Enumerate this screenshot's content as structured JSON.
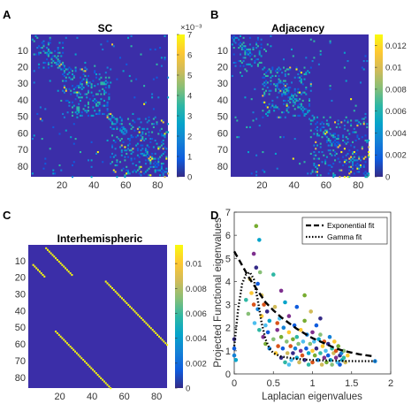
{
  "panel_labels": [
    "A",
    "B",
    "C",
    "D"
  ],
  "colors": {
    "background": "#ffffff",
    "matrix_bg": "#3b2ea8",
    "parula": [
      "#352a87",
      "#0f5cdd",
      "#1481d6",
      "#06a4ca",
      "#2eb7a4",
      "#87bf77",
      "#d1bb59",
      "#fec832",
      "#f9fb0e"
    ],
    "fit_line": "#000000"
  },
  "chart_data": [
    {
      "type": "heatmap",
      "panel": "A",
      "title": "SC",
      "x_ticks": [
        "20",
        "40",
        "60",
        "80"
      ],
      "y_ticks": [
        "10",
        "20",
        "30",
        "40",
        "50",
        "60",
        "70",
        "80"
      ],
      "colorbar": {
        "min": 0,
        "max": 0.007,
        "ticks": [
          "0",
          "1",
          "2",
          "3",
          "4",
          "5",
          "6",
          "7"
        ],
        "multiplier": "×10⁻³"
      }
    },
    {
      "type": "heatmap",
      "panel": "B",
      "title": "Adjacency",
      "x_ticks": [
        "20",
        "40",
        "60",
        "80"
      ],
      "y_ticks": [
        "10",
        "20",
        "30",
        "40",
        "50",
        "60",
        "70",
        "80"
      ],
      "colorbar": {
        "min": 0,
        "max": 0.013,
        "ticks": [
          "0",
          "0.002",
          "0.004",
          "0.006",
          "0.008",
          "0.01",
          "0.012"
        ]
      }
    },
    {
      "type": "heatmap",
      "panel": "C",
      "title": "Interhemispheric",
      "x_ticks": [
        "20",
        "40",
        "60",
        "80"
      ],
      "y_ticks": [
        "10",
        "20",
        "30",
        "40",
        "50",
        "60",
        "70",
        "80"
      ],
      "colorbar": {
        "min": 0,
        "max": 0.0115,
        "ticks": [
          "0",
          "0.002",
          "0.004",
          "0.006",
          "0.008",
          "0.01"
        ]
      }
    },
    {
      "type": "scatter",
      "panel": "D",
      "xlabel": "Laplacian eigenvalues",
      "ylabel": "Projected Functional eigenvalues",
      "xlim": [
        0,
        2
      ],
      "ylim": [
        0,
        7
      ],
      "x_ticks": [
        "0",
        "0.5",
        "1",
        "1.5",
        "2"
      ],
      "y_ticks": [
        "0",
        "1",
        "2",
        "3",
        "4",
        "5",
        "6",
        "7"
      ],
      "legend_position": "top-right",
      "legend": [
        "Exponential fit",
        "Gamma fit"
      ],
      "fits": [
        {
          "name": "Exponential fit",
          "style": "dashed",
          "x": [
            0,
            0.1,
            0.2,
            0.3,
            0.4,
            0.5,
            0.6,
            0.7,
            0.8,
            0.9,
            1.0,
            1.1,
            1.2,
            1.3,
            1.4,
            1.5,
            1.6,
            1.7,
            1.8
          ],
          "y": [
            5.3,
            4.7,
            4.1,
            3.6,
            3.1,
            2.75,
            2.45,
            2.2,
            1.95,
            1.75,
            1.55,
            1.4,
            1.25,
            1.1,
            1.0,
            0.92,
            0.85,
            0.8,
            0.75
          ]
        },
        {
          "name": "Gamma fit",
          "style": "dotted",
          "x": [
            0.0,
            0.05,
            0.1,
            0.15,
            0.2,
            0.25,
            0.3,
            0.35,
            0.4,
            0.45,
            0.5,
            0.6,
            0.7,
            0.8,
            0.9,
            1.0,
            1.2,
            1.4,
            1.6,
            1.8
          ],
          "y": [
            1.2,
            2.8,
            3.9,
            4.3,
            4.4,
            4.1,
            3.2,
            2.2,
            1.5,
            1.1,
            0.9,
            0.75,
            0.7,
            0.65,
            0.62,
            0.6,
            0.58,
            0.56,
            0.55,
            0.55
          ]
        }
      ],
      "points": [
        [
          0.0,
          1.5
        ],
        [
          0.0,
          1.1
        ],
        [
          0.0,
          0.8
        ],
        [
          0.02,
          0.6
        ],
        [
          0.15,
          3.2
        ],
        [
          0.18,
          2.6
        ],
        [
          0.2,
          4.1
        ],
        [
          0.22,
          3.5
        ],
        [
          0.25,
          5.2
        ],
        [
          0.25,
          3.0
        ],
        [
          0.26,
          2.2
        ],
        [
          0.28,
          6.4
        ],
        [
          0.28,
          4.6
        ],
        [
          0.3,
          3.9
        ],
        [
          0.3,
          2.8
        ],
        [
          0.32,
          5.8
        ],
        [
          0.32,
          1.9
        ],
        [
          0.33,
          4.4
        ],
        [
          0.35,
          3.4
        ],
        [
          0.35,
          2.5
        ],
        [
          0.37,
          1.6
        ],
        [
          0.38,
          3.0
        ],
        [
          0.4,
          2.1
        ],
        [
          0.4,
          1.3
        ],
        [
          0.42,
          2.7
        ],
        [
          0.43,
          1.8
        ],
        [
          0.45,
          1.1
        ],
        [
          0.45,
          2.3
        ],
        [
          0.5,
          4.3
        ],
        [
          0.5,
          1.5
        ],
        [
          0.52,
          2.9
        ],
        [
          0.53,
          0.9
        ],
        [
          0.55,
          1.9
        ],
        [
          0.56,
          1.2
        ],
        [
          0.58,
          2.4
        ],
        [
          0.6,
          1.6
        ],
        [
          0.6,
          0.7
        ],
        [
          0.62,
          1.1
        ],
        [
          0.63,
          2.0
        ],
        [
          0.65,
          3.1
        ],
        [
          0.65,
          0.5
        ],
        [
          0.67,
          1.4
        ],
        [
          0.68,
          0.9
        ],
        [
          0.7,
          1.8
        ],
        [
          0.7,
          2.5
        ],
        [
          0.72,
          1.2
        ],
        [
          0.73,
          0.6
        ],
        [
          0.75,
          1.5
        ],
        [
          0.75,
          0.9
        ],
        [
          0.77,
          2.1
        ],
        [
          0.78,
          1.1
        ],
        [
          0.8,
          0.7
        ],
        [
          0.8,
          1.6
        ],
        [
          0.82,
          1.3
        ],
        [
          0.83,
          0.5
        ],
        [
          0.85,
          1.9
        ],
        [
          0.85,
          1.0
        ],
        [
          0.87,
          0.8
        ],
        [
          0.88,
          1.4
        ],
        [
          0.9,
          2.3
        ],
        [
          0.9,
          0.6
        ],
        [
          0.92,
          1.1
        ],
        [
          0.93,
          1.7
        ],
        [
          0.95,
          0.9
        ],
        [
          0.95,
          0.4
        ],
        [
          0.97,
          1.3
        ],
        [
          0.98,
          2.7
        ],
        [
          1.0,
          1.0
        ],
        [
          1.0,
          1.8
        ],
        [
          1.0,
          0.5
        ],
        [
          1.02,
          1.4
        ],
        [
          1.03,
          0.8
        ],
        [
          1.05,
          1.1
        ],
        [
          1.05,
          2.1
        ],
        [
          1.07,
          0.6
        ],
        [
          1.08,
          1.5
        ],
        [
          1.1,
          0.9
        ],
        [
          1.1,
          1.7
        ],
        [
          1.12,
          0.4
        ],
        [
          1.13,
          1.2
        ],
        [
          1.15,
          0.7
        ],
        [
          1.15,
          1.4
        ],
        [
          1.17,
          1.0
        ],
        [
          1.18,
          0.5
        ],
        [
          1.2,
          1.3
        ],
        [
          1.2,
          0.8
        ],
        [
          1.22,
          1.6
        ],
        [
          1.23,
          0.6
        ],
        [
          1.25,
          1.1
        ],
        [
          1.25,
          0.4
        ],
        [
          1.27,
          0.9
        ],
        [
          1.28,
          1.4
        ],
        [
          1.3,
          0.7
        ],
        [
          1.3,
          1.0
        ],
        [
          1.32,
          0.5
        ],
        [
          1.33,
          1.2
        ],
        [
          1.35,
          0.8
        ],
        [
          1.35,
          0.4
        ],
        [
          1.37,
          0.9
        ],
        [
          1.38,
          0.6
        ],
        [
          1.4,
          0.7
        ],
        [
          1.4,
          1.0
        ],
        [
          1.42,
          0.5
        ],
        [
          1.45,
          0.8
        ],
        [
          0.6,
          3.6
        ],
        [
          0.55,
          2.2
        ],
        [
          0.7,
          0.4
        ],
        [
          0.9,
          3.4
        ],
        [
          1.1,
          2.4
        ],
        [
          0.8,
          2.9
        ],
        [
          1.8,
          0.55
        ]
      ]
    }
  ]
}
